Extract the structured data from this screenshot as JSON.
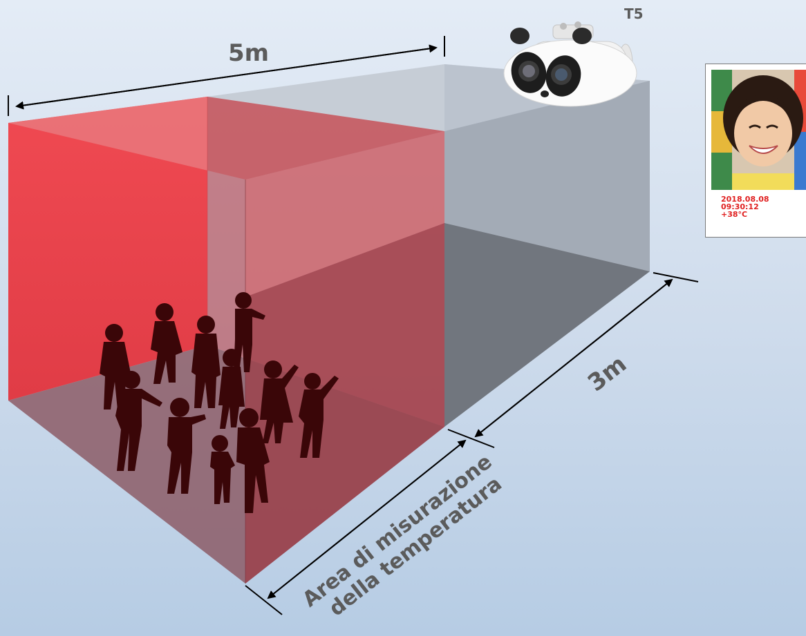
{
  "labels": {
    "width_dimension": "5m",
    "depth_dimension": "3m",
    "camera_model": "T5",
    "area_line1": "Area di misurazione",
    "area_line2": "della temperatura"
  },
  "snapshot": {
    "date": "2018.08.08",
    "time": "09:30:12",
    "temperature": "+38°C"
  },
  "colors": {
    "measurement_zone": "#e8414a",
    "box_gray": "#a6b0bd",
    "temperature_text": "#e02020",
    "label_text": "#5b5b5b"
  },
  "icons": {
    "camera": "thermal-camera-icon",
    "people": "children-silhouettes"
  }
}
